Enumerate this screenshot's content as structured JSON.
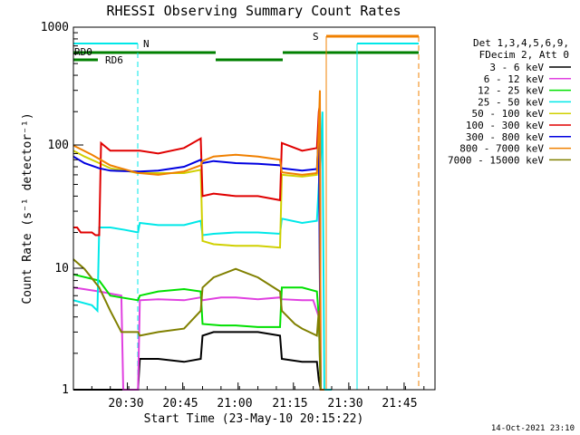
{
  "chart_data": {
    "type": "line",
    "title": "RHESSI Observing Summary Count Rates",
    "xlabel": "Start Time (23-May-10 20:15:22)",
    "ylabel": "Count Rate (s⁻¹ detector⁻¹)",
    "xscale": "time (minutes after 20:15:22)",
    "xlim": [
      0,
      98
    ],
    "xtick_labels": [
      "20:30",
      "20:45",
      "21:00",
      "21:15",
      "21:30",
      "21:45"
    ],
    "xtick_values": [
      14.63,
      29.63,
      44.63,
      59.63,
      74.63,
      89.63
    ],
    "yscale": "log",
    "ylim": [
      1,
      1000
    ],
    "ytick_labels": [
      "1",
      "10",
      "100",
      "1000"
    ],
    "ytick_values": [
      1,
      10,
      100,
      1000
    ],
    "grid": false,
    "legend_position": "right",
    "legend_header": [
      "Det 1,3,4,5,6,9,",
      "FDecim 2, Att 0"
    ],
    "footer": "14-Oct-2021 23:10",
    "series": [
      {
        "name": "3 - 6 keV",
        "color": "#000000",
        "x": [
          0,
          7,
          14,
          17.5,
          18,
          23,
          30,
          34.5,
          35,
          38,
          44,
          50,
          56,
          56.5,
          62,
          66,
          66.5,
          67
        ],
        "values": [
          1,
          1,
          1,
          1,
          1.8,
          1.8,
          1.7,
          1.8,
          2.8,
          3,
          3,
          3,
          2.8,
          1.8,
          1.7,
          1.7,
          1.2,
          1
        ]
      },
      {
        "name": "6 - 12 keV",
        "color": "#e040e0",
        "x": [
          0,
          7,
          13,
          13.5,
          17.5,
          18,
          23,
          30,
          34.5,
          35,
          40,
          44,
          50,
          56,
          56.5,
          62,
          65,
          66.5,
          67
        ],
        "values": [
          7,
          6.5,
          6,
          1,
          1,
          5.5,
          5.6,
          5.5,
          5.8,
          5.5,
          5.8,
          5.8,
          5.6,
          5.8,
          5.6,
          5.5,
          5.5,
          4,
          1
        ]
      },
      {
        "name": "12 - 25 keV",
        "color": "#00e000",
        "x": [
          0,
          7,
          10,
          17.5,
          18,
          23,
          30,
          34.5,
          35,
          40,
          44,
          50,
          56,
          56.5,
          62,
          66,
          66.5,
          67
        ],
        "values": [
          9,
          8,
          6,
          5.5,
          6,
          6.5,
          6.8,
          6.5,
          3.5,
          3.4,
          3.4,
          3.3,
          3.3,
          7,
          7,
          6.5,
          4,
          1
        ]
      },
      {
        "name": "25 - 50 keV",
        "color": "#00e8e8",
        "x": [
          0,
          5,
          6.5,
          7,
          10,
          14,
          17.5,
          18,
          23,
          30,
          34.5,
          35,
          38,
          44,
          50,
          56,
          56.5,
          62,
          66,
          66.5,
          67,
          67.5,
          68,
          70
        ],
        "values": [
          5.5,
          5,
          4.5,
          22,
          22,
          21,
          20,
          24,
          23,
          23,
          25,
          19,
          19.5,
          20,
          20,
          19.5,
          26,
          24,
          25,
          50,
          80,
          200,
          1,
          1
        ]
      },
      {
        "name": "50 - 100 keV",
        "color": "#d0d000",
        "x": [
          0,
          3,
          7,
          10,
          14,
          17.5,
          18,
          23,
          30,
          34.5,
          35,
          38,
          44,
          50,
          56,
          56.5,
          62,
          66,
          66.5,
          67
        ],
        "values": [
          95,
          85,
          75,
          68,
          65,
          62,
          62,
          62,
          62,
          66,
          17,
          16,
          15.5,
          15.5,
          15,
          60,
          58,
          60,
          150,
          1
        ]
      },
      {
        "name": "100 - 300 keV",
        "color": "#e00000",
        "x": [
          0,
          1,
          2,
          3,
          5,
          6,
          7,
          7.5,
          10,
          17.5,
          18,
          23,
          30,
          34.5,
          35,
          38,
          44,
          50,
          56,
          56.5,
          62,
          66,
          66.5,
          66.8,
          67
        ],
        "values": [
          22,
          22,
          20,
          20,
          20,
          19,
          19,
          110,
          95,
          95,
          95,
          90,
          100,
          120,
          40,
          42,
          40,
          40,
          37,
          110,
          95,
          100,
          200,
          230,
          1
        ]
      },
      {
        "name": "300 - 800 keV",
        "color": "#0000e0",
        "x": [
          0,
          3,
          7,
          10,
          17.5,
          18,
          23,
          30,
          34.5,
          35,
          38,
          44,
          50,
          56,
          56.5,
          62,
          66,
          66.5,
          67
        ],
        "values": [
          85,
          75,
          68,
          65,
          64,
          64,
          65,
          70,
          80,
          75,
          78,
          75,
          74,
          72,
          68,
          65,
          67,
          140,
          1
        ]
      },
      {
        "name": "800 - 7000 keV",
        "color": "#f08000",
        "x": [
          0,
          5,
          10,
          17.5,
          18,
          23,
          30,
          34.5,
          35,
          38,
          44,
          50,
          56,
          56.5,
          62,
          66,
          66.5,
          66.8,
          67,
          68
        ],
        "values": [
          105,
          88,
          72,
          62,
          62,
          60,
          64,
          72,
          78,
          85,
          88,
          85,
          80,
          63,
          60,
          62,
          150,
          300,
          1,
          1
        ]
      },
      {
        "name": "7000 - 15000 keV",
        "color": "#808000",
        "x": [
          0,
          3,
          7,
          10,
          13,
          17.5,
          18,
          23,
          30,
          34.5,
          35,
          38,
          44,
          50,
          56,
          56.5,
          60,
          62,
          66,
          66.5,
          67
        ],
        "values": [
          12,
          10,
          7,
          4.5,
          3,
          3,
          2.8,
          3,
          3.2,
          4.5,
          7,
          8.5,
          10,
          8.5,
          6.5,
          4.5,
          3.5,
          3.2,
          2.8,
          4.5,
          1
        ]
      }
    ],
    "annotations": [
      {
        "text": "RD0",
        "color": "#008000"
      },
      {
        "text": "RD6",
        "color": "#008000"
      },
      {
        "text": "N",
        "color": "#00c0c0"
      },
      {
        "text": "S",
        "color": "#f08000"
      }
    ]
  }
}
